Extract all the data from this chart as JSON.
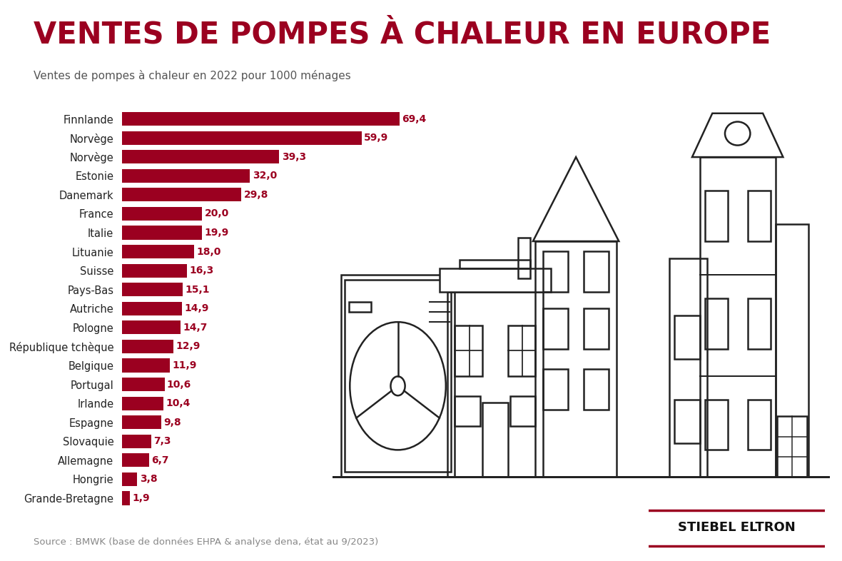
{
  "title": "VENTES DE POMPES À CHALEUR EN EUROPE",
  "subtitle": "Ventes de pompes à chaleur en 2022 pour 1000 ménages",
  "source": "Source : BMWK (base de données EHPA & analyse dena, état au 9/2023)",
  "logo_text": "STIEBEL ELTRON",
  "categories": [
    "Finnlande",
    "Norvège",
    "Norvège",
    "Estonie",
    "Danemark",
    "France",
    "Italie",
    "Lituanie",
    "Suisse",
    "Pays-Bas",
    "Autriche",
    "Pologne",
    "République tchèque",
    "Belgique",
    "Portugal",
    "Irlande",
    "Espagne",
    "Slovaquie",
    "Allemagne",
    "Hongrie",
    "Grande-Bretagne"
  ],
  "values": [
    69.4,
    59.9,
    39.3,
    32.0,
    29.8,
    20.0,
    19.9,
    18.0,
    16.3,
    15.1,
    14.9,
    14.7,
    12.9,
    11.9,
    10.6,
    10.4,
    9.8,
    7.3,
    6.7,
    3.8,
    1.9
  ],
  "bar_color": "#9B0020",
  "value_color": "#9B0020",
  "title_color": "#9B0020",
  "subtitle_color": "#555555",
  "source_color": "#888888",
  "background_color": "#FFFFFF",
  "label_color": "#222222",
  "line_color": "#222222",
  "xlim": [
    0,
    80
  ],
  "bar_height": 0.72,
  "title_fontsize": 30,
  "subtitle_fontsize": 11,
  "label_fontsize": 10.5,
  "value_fontsize": 10,
  "source_fontsize": 9.5,
  "logo_fontsize": 13,
  "lw": 1.8
}
